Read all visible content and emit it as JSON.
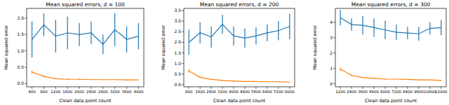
{
  "chart_data": [
    {
      "type": "line",
      "title": "Mean squared errors, d = 100",
      "x_label": "Clean data point count",
      "y_label": "Mean squared error",
      "x": [
        400,
        800,
        1200,
        1600,
        2000,
        2400,
        2800,
        3200,
        3600,
        4000
      ],
      "xlim": [
        220,
        4180
      ],
      "xticks": [
        400,
        800,
        1200,
        1600,
        2000,
        2400,
        2800,
        3200,
        3600,
        4000
      ],
      "ylim": [
        -0.1,
        2.3
      ],
      "yticks": [
        {
          "value": 0,
          "label": "0.0"
        },
        0.5,
        {
          "value": 1,
          "label": "1.0"
        },
        1.5,
        {
          "value": 2,
          "label": "2.0"
        }
      ],
      "series": [
        {
          "color": "#1f77b4",
          "values": [
            1.35,
            1.8,
            1.45,
            1.55,
            1.5,
            1.55,
            1.2,
            1.65,
            1.35,
            1.45
          ],
          "error": [
            0.55,
            0.35,
            0.5,
            0.5,
            0.35,
            0.35,
            0.3,
            0.5,
            0.4,
            0.4
          ]
        },
        {
          "color": "#ff7f0e",
          "values": [
            0.35,
            0.22,
            0.15,
            0.13,
            0.13,
            0.12,
            0.12,
            0.12,
            0.11,
            0.11
          ],
          "error": [
            0.05,
            0.03,
            0.02,
            0.02,
            0.02,
            0.01,
            0.01,
            0.01,
            0.01,
            0.01
          ]
        }
      ]
    },
    {
      "type": "line",
      "title": "Mean squared errors, d = 200",
      "x_label": "Clean data point count",
      "y_label": "Mean squared error",
      "x": [
        800,
        1600,
        2400,
        3200,
        4000,
        4800,
        5600,
        6400,
        7200,
        8000
      ],
      "xlim": [
        440,
        8360
      ],
      "xticks": [
        800,
        1600,
        2400,
        3200,
        4000,
        4800,
        5600,
        6400,
        7200,
        8000
      ],
      "ylim": [
        -0.1,
        3.6
      ],
      "yticks": [
        {
          "value": 0,
          "label": "0.0"
        },
        0.5,
        {
          "value": 1,
          "label": "1.0"
        },
        1.5,
        {
          "value": 2,
          "label": "2.0"
        },
        2.5,
        {
          "value": 3,
          "label": "3.0"
        },
        3.5
      ],
      "series": [
        {
          "color": "#1f77b4",
          "values": [
            2.0,
            2.45,
            2.25,
            2.85,
            2.3,
            2.2,
            2.3,
            2.45,
            2.55,
            2.75
          ],
          "error": [
            0.6,
            0.5,
            0.5,
            0.45,
            0.45,
            0.45,
            0.4,
            0.4,
            0.45,
            0.6
          ]
        },
        {
          "color": "#ff7f0e",
          "values": [
            0.65,
            0.35,
            0.25,
            0.2,
            0.17,
            0.15,
            0.15,
            0.14,
            0.14,
            0.13
          ],
          "error": [
            0.08,
            0.04,
            0.03,
            0.02,
            0.02,
            0.02,
            0.01,
            0.01,
            0.01,
            0.01
          ]
        }
      ]
    },
    {
      "type": "line",
      "title": "Mean squared errors, d = 300",
      "x_label": "Clean data point count",
      "y_label": "Mean squared error",
      "x": [
        1200,
        2400,
        3600,
        4800,
        6000,
        7200,
        8400,
        9600,
        10800,
        12000
      ],
      "xlim": [
        660,
        12540
      ],
      "xticks": [
        1200,
        2400,
        3600,
        4800,
        6000,
        7200,
        8400,
        9600,
        10800,
        12000
      ],
      "ylim": [
        -0.2,
        4.9
      ],
      "yticks": [
        0,
        1,
        2,
        3,
        4
      ],
      "series": [
        {
          "color": "#1f77b4",
          "values": [
            4.3,
            3.85,
            3.8,
            3.65,
            3.5,
            3.35,
            3.3,
            3.25,
            3.6,
            3.65
          ],
          "error": [
            0.5,
            0.4,
            0.6,
            0.6,
            0.6,
            0.5,
            0.4,
            0.45,
            0.4,
            0.5
          ]
        },
        {
          "color": "#ff7f0e",
          "values": [
            0.95,
            0.55,
            0.4,
            0.35,
            0.3,
            0.3,
            0.28,
            0.25,
            0.25,
            0.22
          ],
          "error": [
            0.1,
            0.06,
            0.04,
            0.03,
            0.03,
            0.02,
            0.02,
            0.02,
            0.02,
            0.02
          ]
        }
      ]
    }
  ]
}
